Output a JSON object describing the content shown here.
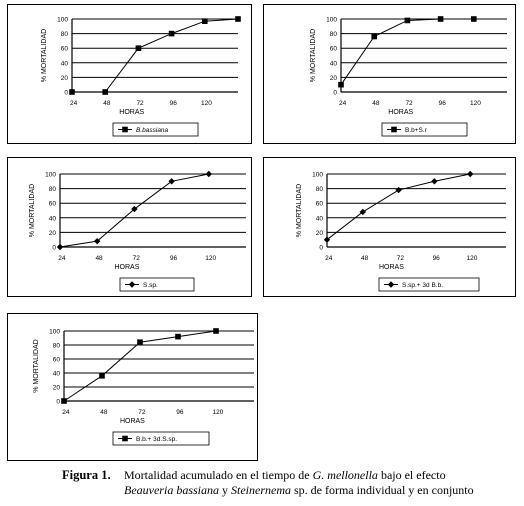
{
  "charts": [
    {
      "type": "line",
      "marker": "square",
      "categories": [
        "24",
        "48",
        "72",
        "96",
        "120",
        ""
      ],
      "values": [
        0,
        0,
        60,
        80,
        97,
        100
      ],
      "ylim": [
        0,
        100
      ],
      "yticks": [
        "0",
        "20",
        "40",
        "60",
        "80",
        "100"
      ],
      "xlabel": "HORAS",
      "ylabel": "% MORTALIDAD",
      "legend": "B.bassiana",
      "grid": "horizontal"
    },
    {
      "type": "line",
      "marker": "square",
      "categories": [
        "24",
        "48",
        "72",
        "96",
        "120"
      ],
      "values": [
        10,
        76,
        98,
        100,
        100
      ],
      "ylim": [
        0,
        100
      ],
      "yticks": [
        "0",
        "20",
        "40",
        "60",
        "80",
        "100"
      ],
      "xlabel": "HORAS",
      "ylabel": "% MORTALIDAD",
      "legend": "B.b+S.r",
      "grid": "horizontal"
    },
    {
      "type": "line",
      "marker": "diamond",
      "categories": [
        "24",
        "48",
        "72",
        "96",
        "120"
      ],
      "values": [
        0,
        8,
        52,
        90,
        100
      ],
      "ylim": [
        0,
        100
      ],
      "yticks": [
        "0",
        "20",
        "40",
        "60",
        "80",
        "100"
      ],
      "xlabel": "HORAS",
      "ylabel": "% MORTALIDAD",
      "legend": "S.sp.",
      "grid": "horizontal"
    },
    {
      "type": "line",
      "marker": "diamond",
      "categories": [
        "24",
        "48",
        "72",
        "96",
        "120"
      ],
      "values": [
        10,
        48,
        78,
        90,
        100
      ],
      "ylim": [
        0,
        100
      ],
      "yticks": [
        "0",
        "20",
        "40",
        "60",
        "80",
        "100"
      ],
      "xlabel": "HORAS",
      "ylabel": "% MORTALIDAD",
      "legend": "S.sp.+ 3d B.b.",
      "grid": "horizontal"
    },
    {
      "type": "line",
      "marker": "square",
      "categories": [
        "24",
        "48",
        "72",
        "96",
        "120"
      ],
      "values": [
        0,
        36,
        84,
        92,
        100
      ],
      "ylim": [
        0,
        100
      ],
      "yticks": [
        "0",
        "20",
        "40",
        "60",
        "80",
        "100"
      ],
      "xlabel": "HORAS",
      "ylabel": "% MORTALIDAD",
      "legend": "B.b.+ 3d.S.sp.",
      "grid": "horizontal"
    }
  ],
  "caption": {
    "label": "Figura 1.",
    "line1": "Mortalidad acumulado en el tiempo de G. mellonella bajo el efecto",
    "line2": "Beauveria bassiana y Steinernema sp. de forma individual y en conjunto"
  }
}
